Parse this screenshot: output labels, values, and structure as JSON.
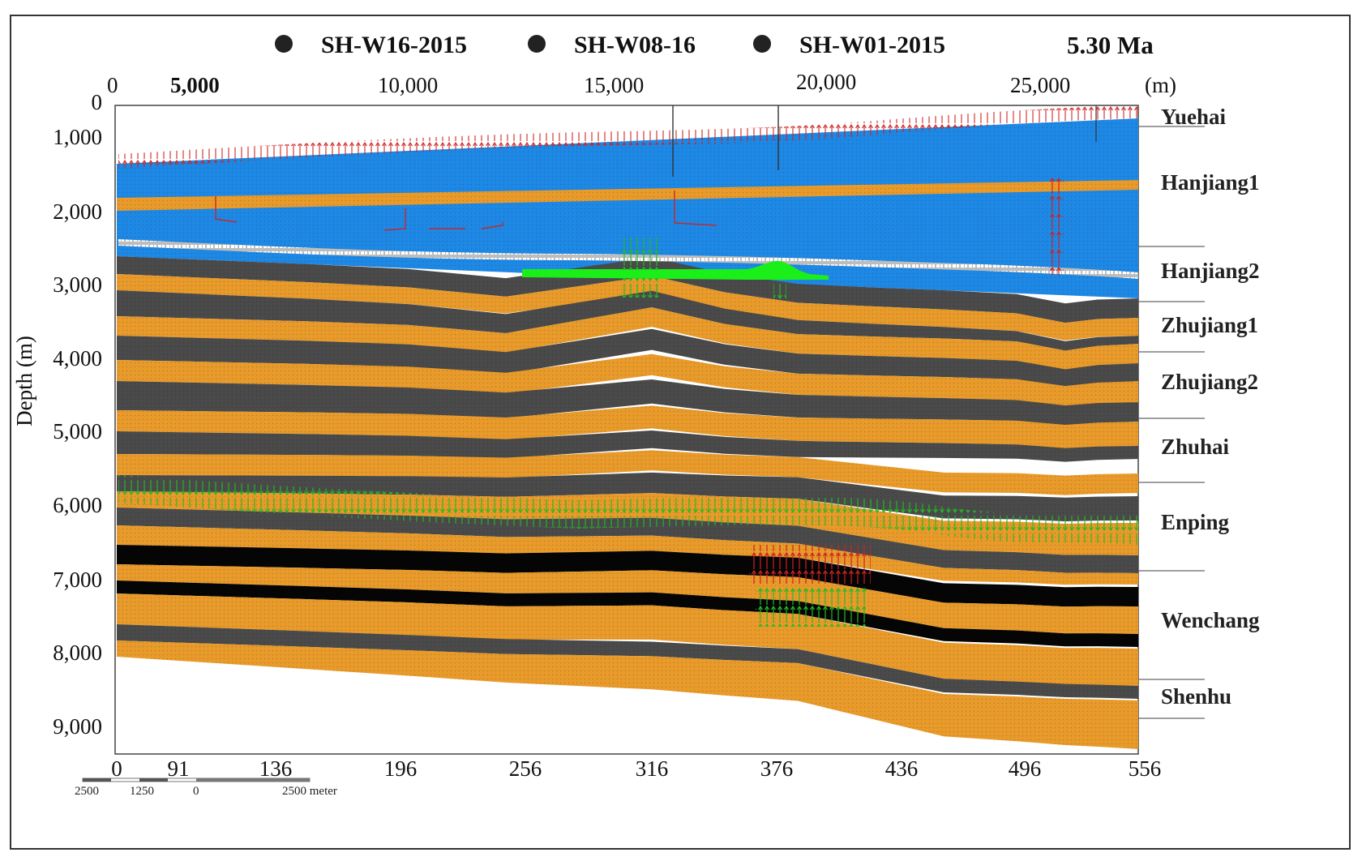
{
  "title": "",
  "legend": {
    "wells": [
      "SH-W16-2015",
      "SH-W08-16",
      "SH-W01-2015"
    ],
    "age": "5.30 Ma"
  },
  "top_axis": {
    "ticks": [
      "0",
      "5,000",
      "10,000",
      "15,000",
      "20,000",
      "25,000"
    ],
    "unit": "(m)"
  },
  "left_axis": {
    "label": "Depth (m)",
    "ticks": [
      "0",
      "1,000",
      "2,000",
      "3,000",
      "4,000",
      "5,000",
      "6,000",
      "7,000",
      "8,000",
      "9,000"
    ]
  },
  "bottom_axis": {
    "ticks": [
      "0",
      "91",
      "136",
      "196",
      "256",
      "316",
      "376",
      "436",
      "496",
      "556"
    ]
  },
  "scale_bar": {
    "labels": [
      "2500",
      "1250",
      "0",
      "2500 meter"
    ]
  },
  "formations": [
    "Yuehai",
    "Hanjiang1",
    "Hanjiang2",
    "Zhujiang1",
    "Zhujiang2",
    "Zhuhai",
    "Enping",
    "Wenchang",
    "Shenhu"
  ],
  "colors": {
    "sandstone": "#e89a2a",
    "mudstone": "#4a4a4a",
    "shallow_water_layer": "#1e88e5",
    "hydrate_zone": "#22ee22",
    "coal": "#050505",
    "red_arrows": "#cc2222",
    "green_arrows": "#22aa22"
  }
}
